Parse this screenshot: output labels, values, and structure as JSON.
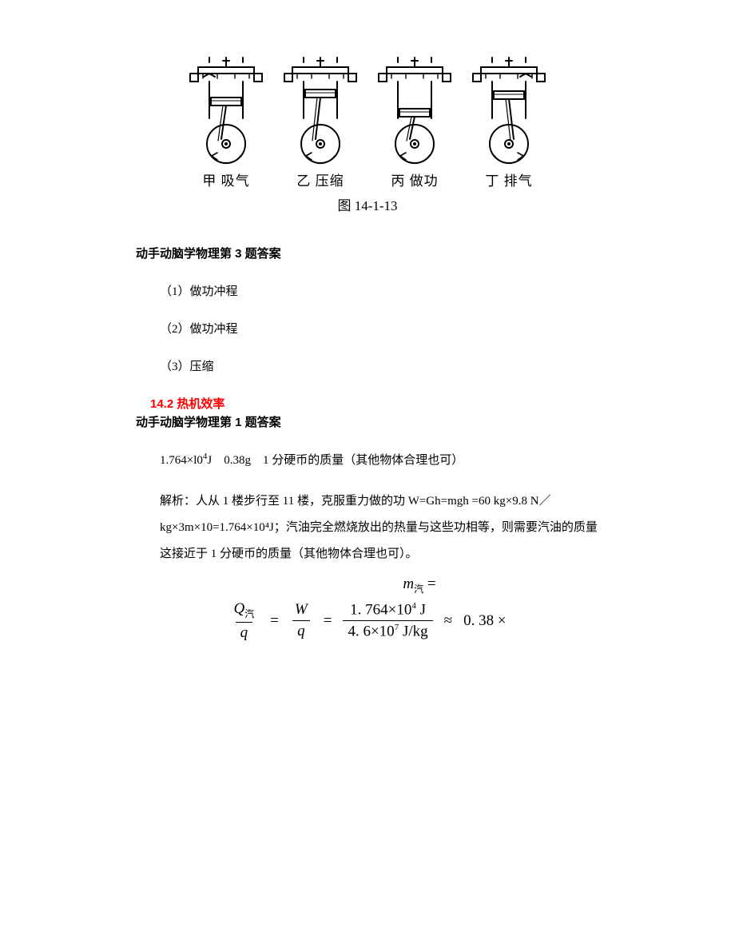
{
  "figure": {
    "engines": [
      {
        "label": "甲 吸气",
        "arrow": "ccw",
        "pistonY": 30,
        "valveLeftOpen": true,
        "valveRightOpen": false
      },
      {
        "label": "乙 压缩",
        "arrow": "ccw",
        "pistonY": 20,
        "valveLeftOpen": false,
        "valveRightOpen": false
      },
      {
        "label": "丙 做功",
        "arrow": "ccw",
        "pistonY": 44,
        "valveLeftOpen": false,
        "valveRightOpen": false
      },
      {
        "label": "丁 排气",
        "arrow": "cw",
        "pistonY": 22,
        "valveLeftOpen": false,
        "valveRightOpen": true
      }
    ],
    "caption": "图 14-1-13",
    "stroke_color": "#000000",
    "stroke_width": 2
  },
  "q3": {
    "heading": "动手动脑学物理第 3 题答案",
    "a1": "（1）做功冲程",
    "a2": "（2）做功冲程",
    "a3": "（3）压缩"
  },
  "sec142": {
    "title": "14.2 热机效率",
    "heading": "动手动脑学物理第 1 题答案",
    "line1_a": "1.764×l0",
    "line1_a_sup": "4",
    "line1_a_unit": "J",
    "line1_b": "0.38g",
    "line1_c": "1 分硬币的质量（其他物体合理也可）",
    "para": "解析：人从 1 楼步行至 11 楼，克服重力做的功 W=Gh=mgh =60 kg×9.8 N／kg×3m×10=1.764×10⁴J；汽油完全燃烧放出的热量与这些功相等，则需要汽油的质量这接近于 1 分硬币的质量（其他物体合理也可）。"
  },
  "formula": {
    "m_label": "m",
    "m_sub": "汽",
    "eq": "=",
    "Q": "Q",
    "Q_sub": "汽",
    "q": "q",
    "W": "W",
    "num_val": "1. 764×10",
    "num_sup": "4",
    "num_unit": " J",
    "den_val": "4. 6×10",
    "den_sup": "7",
    "den_unit": " J/kg",
    "approx": "≈",
    "result": "0. 38 ×"
  }
}
